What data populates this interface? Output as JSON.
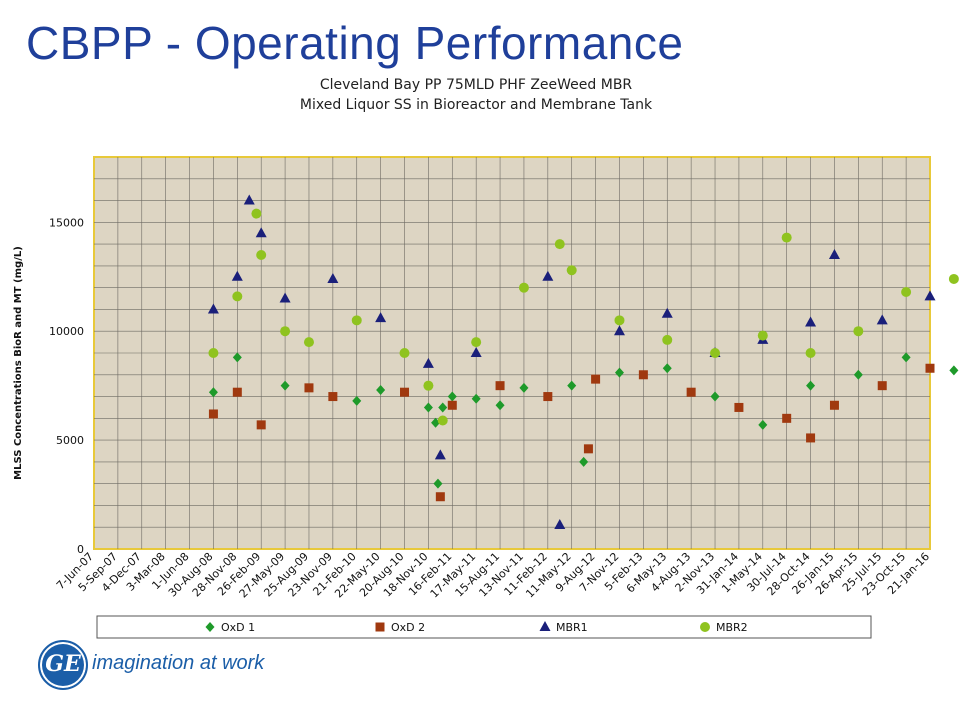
{
  "slide_title": "CBPP - Operating Performance",
  "footer": {
    "tagline": "imagination at work",
    "logo_text": "GE"
  },
  "chart_data": {
    "type": "scatter",
    "title": [
      "Cleveland Bay PP 75MLD PHF ZeeWeed MBR",
      "Mixed Liquor SS in Bioreactor and Membrane Tank"
    ],
    "ylabel": "MLSS Concentrations BioR and MT (mg/L)",
    "xlabel": "",
    "ylim": [
      0,
      18000
    ],
    "yticks": [
      0,
      5000,
      10000,
      15000
    ],
    "xticks": [
      "7-Jun-07",
      "5-Sep-07",
      "4-Dec-07",
      "3-Mar-08",
      "1-Jun-08",
      "30-Aug-08",
      "28-Nov-08",
      "26-Feb-09",
      "27-May-09",
      "25-Aug-09",
      "23-Nov-09",
      "21-Feb-10",
      "22-May-10",
      "20-Aug-10",
      "18-Nov-10",
      "16-Feb-11",
      "17-May-11",
      "15-Aug-11",
      "13-Nov-11",
      "11-Feb-12",
      "11-May-12",
      "9-Aug-12",
      "7-Nov-12",
      "5-Feb-13",
      "6-May-13",
      "4-Aug-13",
      "2-Nov-13",
      "31-Jan-14",
      "1-May-14",
      "30-Jul-14",
      "28-Oct-14",
      "26-Jan-15",
      "26-Apr-15",
      "25-Jul-15",
      "23-Oct-15",
      "21-Jan-16"
    ],
    "grid": true,
    "legend_position": "bottom",
    "plot_background": "#ddd5c3",
    "series": [
      {
        "name": "OxD 1",
        "marker": "diamond",
        "color": "#1e9a2a",
        "points": [
          [
            5,
            7200
          ],
          [
            6,
            8800
          ],
          [
            8,
            7500
          ],
          [
            11,
            6800
          ],
          [
            12,
            7300
          ],
          [
            14,
            6500
          ],
          [
            14.3,
            5800
          ],
          [
            14.4,
            3000
          ],
          [
            14.6,
            6500
          ],
          [
            15,
            7000
          ],
          [
            16,
            6900
          ],
          [
            17,
            6600
          ],
          [
            18,
            7400
          ],
          [
            20.5,
            4000
          ],
          [
            20,
            7500
          ],
          [
            22,
            8100
          ],
          [
            24,
            8300
          ],
          [
            26,
            7000
          ],
          [
            28,
            5700
          ],
          [
            30,
            7500
          ],
          [
            32,
            8000
          ],
          [
            34,
            8800
          ],
          [
            36,
            8200
          ],
          [
            38,
            7600
          ],
          [
            40,
            6400
          ],
          [
            42,
            6700
          ],
          [
            44,
            7400
          ],
          [
            46,
            7000
          ],
          [
            48,
            7600
          ],
          [
            51,
            7200
          ],
          [
            53,
            5700
          ],
          [
            55,
            7900
          ],
          [
            58,
            8300
          ],
          [
            61,
            7500
          ],
          [
            64,
            7000
          ],
          [
            67,
            7600
          ],
          [
            70,
            8000
          ],
          [
            73,
            8300
          ],
          [
            76,
            9300
          ],
          [
            79,
            8600
          ],
          [
            82,
            7000
          ],
          [
            85,
            5900
          ],
          [
            88,
            8500
          ],
          [
            91,
            9000
          ],
          [
            94,
            8200
          ],
          [
            97,
            8100
          ],
          [
            100,
            7600
          ],
          [
            103,
            7800
          ],
          [
            106,
            9600
          ],
          [
            108,
            7700
          ]
        ]
      },
      {
        "name": "OxD 2",
        "marker": "square",
        "color": "#a0390f",
        "points": [
          [
            5,
            6200
          ],
          [
            6,
            7200
          ],
          [
            7,
            5700
          ],
          [
            9,
            7400
          ],
          [
            10,
            7000
          ],
          [
            13,
            7200
          ],
          [
            14.5,
            2400
          ],
          [
            15,
            6600
          ],
          [
            17,
            7500
          ],
          [
            19,
            7000
          ],
          [
            20.7,
            4600
          ],
          [
            21,
            7800
          ],
          [
            23,
            8000
          ],
          [
            25,
            7200
          ],
          [
            27,
            6500
          ],
          [
            29,
            6000
          ],
          [
            30,
            5100
          ],
          [
            31,
            6600
          ],
          [
            33,
            7500
          ],
          [
            35,
            8300
          ],
          [
            37,
            9000
          ],
          [
            39,
            7800
          ],
          [
            41,
            6500
          ],
          [
            43,
            6300
          ],
          [
            45,
            6700
          ],
          [
            47,
            7000
          ],
          [
            49,
            7400
          ],
          [
            51,
            6600
          ],
          [
            53,
            4600
          ],
          [
            54,
            6500
          ],
          [
            55,
            7500
          ],
          [
            58,
            7400
          ],
          [
            61,
            7000
          ],
          [
            64,
            7400
          ],
          [
            67,
            7800
          ],
          [
            70,
            8200
          ],
          [
            73,
            8500
          ],
          [
            76,
            7600
          ],
          [
            79,
            8100
          ],
          [
            82,
            8300
          ],
          [
            85,
            7900
          ],
          [
            88,
            8400
          ],
          [
            91,
            8000
          ],
          [
            94,
            7300
          ],
          [
            97,
            8100
          ],
          [
            100,
            7600
          ],
          [
            103,
            8200
          ],
          [
            106,
            9000
          ],
          [
            108,
            8500
          ]
        ]
      },
      {
        "name": "MBR1",
        "marker": "triangle",
        "color": "#1a1f7a",
        "points": [
          [
            5,
            11000
          ],
          [
            6,
            12500
          ],
          [
            6.5,
            16000
          ],
          [
            7,
            14500
          ],
          [
            8,
            11500
          ],
          [
            10,
            12400
          ],
          [
            12,
            10600
          ],
          [
            14,
            8500
          ],
          [
            14.5,
            4300
          ],
          [
            16,
            9000
          ],
          [
            19,
            12500
          ],
          [
            19.5,
            1100
          ],
          [
            22,
            10000
          ],
          [
            24,
            10800
          ],
          [
            26,
            9000
          ],
          [
            28,
            9600
          ],
          [
            30,
            10400
          ],
          [
            31,
            13500
          ],
          [
            33,
            10500
          ],
          [
            35,
            11600
          ],
          [
            37,
            12800
          ],
          [
            39,
            11800
          ],
          [
            41,
            10800
          ],
          [
            43,
            11700
          ],
          [
            45,
            10000
          ],
          [
            47,
            10300
          ],
          [
            49,
            11200
          ],
          [
            51,
            12000
          ],
          [
            53,
            13400
          ],
          [
            55,
            11600
          ],
          [
            57,
            12000
          ],
          [
            60,
            13100
          ],
          [
            62,
            11800
          ],
          [
            64,
            11300
          ],
          [
            67,
            12000
          ],
          [
            70,
            11300
          ],
          [
            73,
            12600
          ],
          [
            76,
            10800
          ],
          [
            79,
            11800
          ],
          [
            82,
            11300
          ],
          [
            85,
            11600
          ],
          [
            88,
            12200
          ],
          [
            91,
            10000
          ],
          [
            92,
            6200
          ],
          [
            94,
            12000
          ],
          [
            97,
            13200
          ],
          [
            100,
            11600
          ],
          [
            103,
            12600
          ],
          [
            106,
            11900
          ],
          [
            108,
            10400
          ]
        ]
      },
      {
        "name": "MBR2",
        "marker": "circle",
        "color": "#8fc31f",
        "points": [
          [
            5,
            9000
          ],
          [
            6,
            11600
          ],
          [
            6.8,
            15400
          ],
          [
            7,
            13500
          ],
          [
            8,
            10000
          ],
          [
            9,
            9500
          ],
          [
            11,
            10500
          ],
          [
            13,
            9000
          ],
          [
            14,
            7500
          ],
          [
            14.6,
            5900
          ],
          [
            16,
            9500
          ],
          [
            18,
            12000
          ],
          [
            19.5,
            14000
          ],
          [
            20,
            12800
          ],
          [
            22,
            10500
          ],
          [
            24,
            9600
          ],
          [
            26,
            9000
          ],
          [
            28,
            9800
          ],
          [
            29,
            14300
          ],
          [
            30,
            9000
          ],
          [
            32,
            10000
          ],
          [
            34,
            11800
          ],
          [
            36,
            12400
          ],
          [
            37,
            14200
          ],
          [
            38,
            12800
          ],
          [
            40,
            10000
          ],
          [
            42,
            10500
          ],
          [
            44,
            11100
          ],
          [
            46,
            9600
          ],
          [
            48,
            11000
          ],
          [
            50,
            12000
          ],
          [
            52,
            15200
          ],
          [
            53,
            5000
          ],
          [
            54,
            13500
          ],
          [
            55,
            15700
          ],
          [
            56,
            12000
          ],
          [
            58,
            12700
          ],
          [
            60,
            12200
          ],
          [
            62,
            10000
          ],
          [
            64,
            12700
          ],
          [
            65,
            14900
          ],
          [
            67,
            11600
          ],
          [
            70,
            11800
          ],
          [
            73,
            13000
          ],
          [
            76,
            12000
          ],
          [
            79,
            11300
          ],
          [
            81,
            13800
          ],
          [
            83,
            12300
          ],
          [
            85,
            11500
          ],
          [
            88,
            12400
          ],
          [
            90,
            13600
          ],
          [
            91,
            11000
          ],
          [
            94,
            14000
          ],
          [
            97,
            13500
          ],
          [
            99,
            15200
          ],
          [
            100,
            11400
          ],
          [
            103,
            12000
          ],
          [
            106,
            12400
          ],
          [
            108,
            11200
          ]
        ]
      }
    ]
  }
}
